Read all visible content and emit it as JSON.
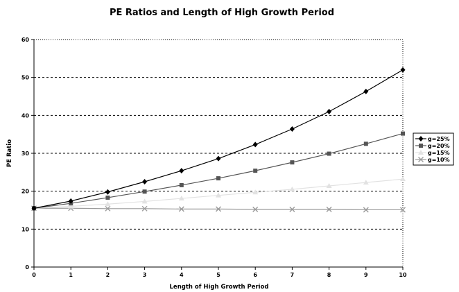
{
  "chart_data": {
    "type": "line",
    "title": "PE Ratios and Length of High Growth Period",
    "xlabel": "Length of High Growth Period",
    "ylabel": "PE Ratio",
    "x": [
      0,
      1,
      2,
      3,
      4,
      5,
      6,
      7,
      8,
      9,
      10
    ],
    "xlim": [
      0,
      10
    ],
    "ylim": [
      0,
      60
    ],
    "yticks": [
      0,
      10,
      20,
      30,
      40,
      50,
      60
    ],
    "grid": "horizontal-dashed",
    "legend": "right",
    "series": [
      {
        "name": "g=25%",
        "color": "#000000",
        "marker": "diamond",
        "values": [
          15.5,
          17.4,
          19.8,
          22.5,
          25.4,
          28.6,
          32.3,
          36.4,
          41.0,
          46.3,
          52.0
        ]
      },
      {
        "name": "g=20%",
        "color": "#555555",
        "marker": "square",
        "values": [
          15.5,
          16.8,
          18.3,
          19.9,
          21.6,
          23.4,
          25.4,
          27.6,
          29.9,
          32.5,
          35.2
        ]
      },
      {
        "name": "g=15%",
        "color": "#e2e2e2",
        "marker": "triangle",
        "values": [
          15.5,
          16.0,
          16.6,
          17.3,
          18.1,
          18.9,
          19.7,
          20.5,
          21.4,
          22.3,
          23.2
        ]
      },
      {
        "name": "g=10%",
        "color": "#9a9a9a",
        "marker": "x",
        "values": [
          15.5,
          15.5,
          15.4,
          15.4,
          15.3,
          15.3,
          15.2,
          15.2,
          15.2,
          15.1,
          15.1
        ]
      }
    ]
  }
}
